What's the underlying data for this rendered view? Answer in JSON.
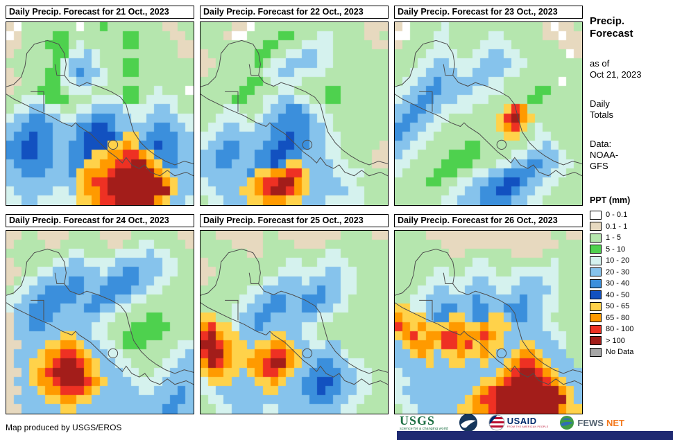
{
  "palette": {
    ".": "#ffffff",
    "t": "#e7d9bf",
    "g": "#b5e6ae",
    "G": "#4ed14e",
    "c": "#d5f2ee",
    "b": "#86c3ec",
    "B": "#3b8fdc",
    "D": "#1251c0",
    "y": "#ffd24a",
    "o": "#ff9a00",
    "r": "#ee3123",
    "R": "#a31d1a",
    "n": "#a6a6a6"
  },
  "panels": [
    {
      "title": "Daily Precip. Forecast for 21 Oct., 2023",
      "grid": [
        "t.ggggggg.ggGgggggggttgg",
        ".tggggGGgggggggGGggggttg",
        "ttgggGGGgcgggggGGgggggtt",
        "tgggggGGccbcggggggggggtt",
        "ggggggGcbbbcgggGGggggggg",
        "tggggGGcbBbbcggGGggggggg",
        "ttgggGGccbbccggggggggggg",
        "tgggGGGgcccggggGGggcggg.",
        "ggcccGGGgggccccGGgccccgg",
        "gccbbccggccbbbbccccbbcgg",
        "cbbBBbbccbbBBBbbccbbbbcc",
        "bbBBBBbbbBBDDBbbbbbBBbbc",
        "bBBDBBbbbBDDDDByybBBBBbb",
        "BBDDBBbbBBDDDyyoyBBDBBbb",
        "BBDDBBbbBBDyyoorroyBBBbb",
        "bBBBBBbbBByyoorrRRoyBBbb",
        "bbBBBbbbByooorRRRRRoybbb",
        "bbbbbbbbbyorrRRRRRRRoybb",
        "cbbbbbccbyoorRRRRRRRRybb",
        "ccbbcccccyyorrRRRRRoybbc"
      ]
    },
    {
      "title": "Daily Precip. Forecast for 22 Oct., 2023",
      "grid": [
        "ggggtt.ggggggggggggggttt",
        "gggt..ggggGGgggccggggttg",
        "ggggggggGGgggccccgggggtt",
        "tggggggGGggccbbccggggggg",
        "ttgggggGgccbbbbccggggggg",
        "tgggggggccbbccccgggggggg",
        "ggggggGGgccccggggggggggg",
        "gggggGGgggccggggGGgggggg",
        "ggggGGggccbbccggGGgggggg",
        "gggccgggcbbBBbccgggggggg",
        "ggccccgcbbBBBBbccggggggg",
        "gccbbccbbBBBBBbbcggggggg",
        "ccbbbbbbbBBDBBbbccgggggg",
        "cbbBBbbbBBDDBBbbccgggggt",
        "bbBBBbbBBDDBBbbbccggggtt",
        "bbBBbbbBBDByybbbbccgggtt",
        "bbbbbbByyoorrybbbccccggg",
        "cbbbbbyorrRRoybbbbccgggg",
        "ccbbbyyorRRroybbbbbccggg",
        "gccbbbyyoooyybbbcccccggg"
      ]
    },
    {
      "title": "Daily Precip. Forecast for 23 Oct., 2023",
      "grid": [
        "t.ggggcggggggggggggt.ttg",
        "..gggccgggggccgggggtt.tt",
        "tggggccggggccccggggggttt",
        "ggggccccggccbbccgggggg.t",
        "gggccbbccccbbbbccggggggg",
        "ggccbbbbccbbbbccgggggggg",
        "gccbbBbbbbbbccggggggg.gg",
        "ccbbBBbbbbccccggggGGgggg",
        "cbbBBbbbccccgggggGGggggg",
        "bbBBbbccccggggyroggggggg",
        "bBBbbccggggggyrRoygggggg",
        "BBbbccgggggggyorygcggggg",
        "Bbbccgggggggggyyggccgggg",
        "bbccgggggGGggggggccbcggg",
        "bccggggGGGGggggccbbbbcgg",
        "ccggggGGGGgggccbbBBbbccg",
        "cggggGGGggccbbBBBBbbccgg",
        "ggggGGggccbbBBDDBbbccggg",
        "gggggggccbbBBDDBbbccgggg",
        "ggggggccbbbBBBBbbccggggg"
      ]
    },
    {
      "title": "Daily Precip. Forecast for 24 Oct., 2023",
      "grid": [
        "ttggttttggggttttggggggtt",
        "tggggttggggggttggccggggt",
        "ggggggggccggggccccbccggg",
        "tgggggccbbccccbbbbbbccgg",
        "ttggccbbbbbbcbbBBbbbccgg",
        "tgccbbbbBBbbbBBBBbbccggg",
        "gccbbBBBBBbbBBBBbbccgggg",
        "ccbbBBBBBbbBBBbbccgggggg",
        "cbbBBBBbbbBBbbccgggggggg",
        "tbbBBBbbbbbbccggggGGgggg",
        "tbbBBbbbbbbccgggGGGGGggg",
        "tbbbbbbyybbccggGGGGGgggg",
        "ttbbbyyooybbccgGGGggggcc",
        "tbbbyoorroybbccggggggccb",
        "tbbyyorRRroybbccggggccbb",
        "ttbyorRRRRoybbbccggccbbb",
        "tbbyoorRRRroybbbccccbbbb",
        "ttbbyoorrroybbbbbccbbbBb",
        "tbbbbyyooyybbbbbbbbbbBBb",
        "ttbbbbbyybbbbbbbbbbbBBbb"
      ]
    },
    {
      "title": "Daily Precip. Forecast for 25 Oct., 2023",
      "grid": [
        "ggttttttggttttttttggggtt",
        "ggggttttggggttttgggggggg",
        "ggggggttggggggggccgggggg",
        "tggggggggggccggccccggggg",
        "ttggggggggccccccbbccgggg",
        "tgggggggccbbbcbbbbccgggg",
        "ggggggccbbbbbbbBbbccgggg",
        "gggggccbbBBbbBBBbbcggggg",
        "ggggccbbBBBbbBBbbccggggg",
        "yyggcbbBBbbbbbbccggggggg",
        "oryycbbBbbbbbccggggggggg",
        "rRoyybbbbyybbccggggggggg",
        "RRroyybyyooybbccbbgggggg",
        "rRRoyyyoorroybbbbbcggggg",
        "oRroyyoorRRoybbBBbbccggg",
        "yooyybyorroybbBBBBbbccgg",
        "cyyybbbyyoybbBBDDBbbccgg",
        "ccbbbbbbyybbbBBDBBbbccgg",
        "gccbbbbbbbbbbbBBBbbccggg",
        "ggccbbbbccbbbbbbbbccgggg"
      ]
    },
    {
      "title": "Daily Precip. Forecast for 26 Oct., 2023",
      "grid": [
        "ggggttttttttttttttttggtt",
        "ggggggtttttttttttttttggg",
        "gggggggttggggggttttggggg",
        "ggggggggggccggggggggcggg",
        "gggggccggccccggccccccggg",
        "ggggccccccbbccccbbbccggg",
        "gggccbbccbbbbccbbbbbcggg",
        "ggccbbbbbbBbbbbbBbbccggg",
        "yyccbbBBbbBBbbBBBbbccggg",
        "oyyybBByybBByybBBbbcgggg",
        "royoyyyooyyoyyybbbbccggg",
        "yoryoorroooroybbbbbbccgg",
        "byoooyrroryoyybbyybbbcgg",
        "bbyoybyyoyyoybbyooybbbgg",
        "bbbbybbyybbybbyorroybbbg",
        "cbbbbbbbbbbbbyorRRroybbb",
        "ccbbbbbbbbbyyorRRRRroybb",
        "cbbbbbbbbbyorRRRRRRRRoyb",
        "ccbbbbbbbyorrRRRRRRRRRyb",
        "gccbbbbbyyoorRRRRRRRRoyy"
      ]
    }
  ],
  "sidebar": {
    "title_line1": "Precip.",
    "title_line2": "Forecast",
    "asof_label": "as of",
    "asof_date": "Oct 21, 2023",
    "totals_line1": "Daily",
    "totals_line2": "Totals",
    "data_label": "Data:",
    "data_source_line1": "NOAA-",
    "data_source_line2": "GFS"
  },
  "legend": {
    "title": "PPT (mm)",
    "entries": [
      {
        "label": "0 - 0.1",
        "key": "."
      },
      {
        "label": "0.1 - 1",
        "key": "t"
      },
      {
        "label": "1 - 5",
        "key": "g"
      },
      {
        "label": "5 - 10",
        "key": "G"
      },
      {
        "label": "10 - 20",
        "key": "c"
      },
      {
        "label": "20 - 30",
        "key": "b"
      },
      {
        "label": "30 - 40",
        "key": "B"
      },
      {
        "label": "40 - 50",
        "key": "D"
      },
      {
        "label": "50 - 65",
        "key": "y"
      },
      {
        "label": "65 - 80",
        "key": "o"
      },
      {
        "label": "80 - 100",
        "key": "r"
      },
      {
        "label": "> 100",
        "key": "R"
      },
      {
        "label": "No Data",
        "key": "n"
      }
    ]
  },
  "footer": {
    "credit": "Map produced by USGS/EROS",
    "bar_color": "#1f2a72",
    "logos": {
      "usgs_name": "USGS",
      "usgs_tagline": "science for a changing world",
      "usaid_name": "USAID",
      "usaid_tagline": "FROM THE AMERICAN PEOPLE",
      "fews_word": "FEWS",
      "net_word": "NET"
    }
  }
}
